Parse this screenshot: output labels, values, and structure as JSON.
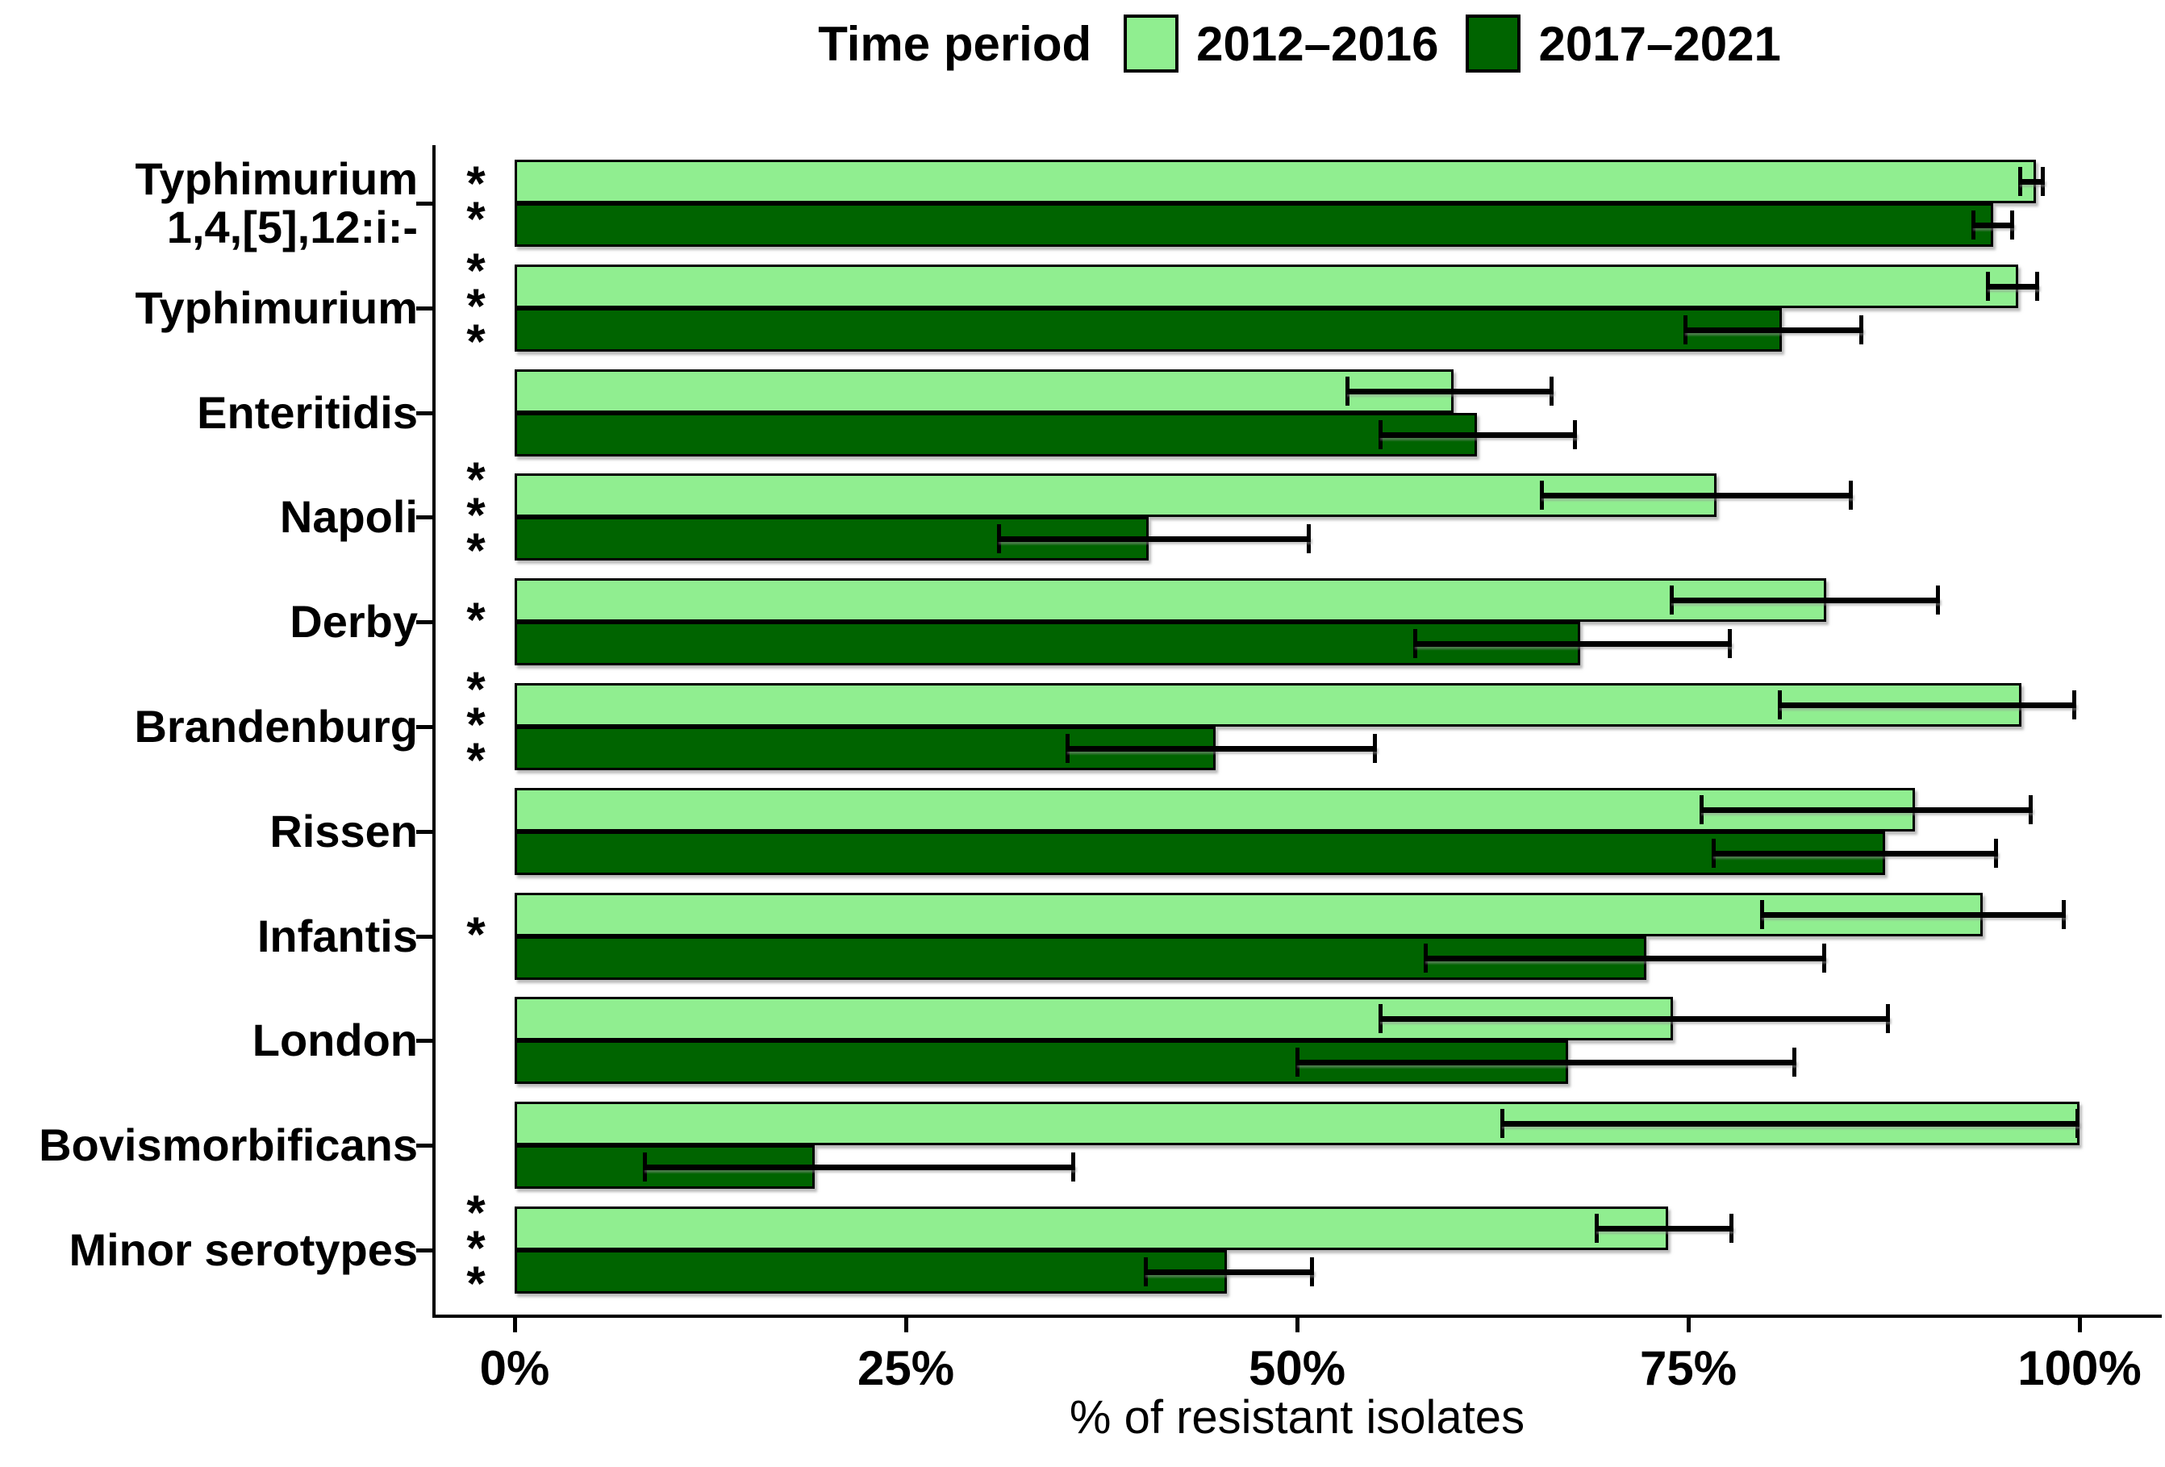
{
  "chart_data": {
    "type": "bar",
    "orientation": "horizontal",
    "legend_title": "Time period",
    "xlabel": "% of resistant isolates",
    "xlim": [
      0,
      100
    ],
    "x_ticks": [
      {
        "value": 0,
        "label": "0%"
      },
      {
        "value": 25,
        "label": "25%"
      },
      {
        "value": 50,
        "label": "50%"
      },
      {
        "value": 75,
        "label": "75%"
      },
      {
        "value": 100,
        "label": "100%"
      }
    ],
    "categories": [
      "Typhimurium\n1,4,[5],12:i:-",
      "Typhimurium",
      "Enteritidis",
      "Napoli",
      "Derby",
      "Brandenburg",
      "Rissen",
      "Infantis",
      "London",
      "Bovismorbificans",
      "Minor serotypes"
    ],
    "significance": [
      "**",
      "***",
      "",
      "***",
      "*",
      "***",
      "",
      "*",
      "",
      "",
      "***"
    ],
    "series": [
      {
        "name": "2012–2016",
        "color": "#90EE90",
        "values": [
          97.2,
          96.1,
          60.0,
          76.8,
          83.8,
          96.3,
          89.5,
          93.8,
          74.0,
          100.0,
          73.7
        ],
        "ci_low": [
          96.1,
          94.0,
          53.1,
          65.5,
          73.8,
          80.7,
          75.7,
          79.6,
          55.2,
          63.0,
          69.0
        ],
        "ci_high": [
          97.8,
          97.4,
          66.4,
          85.5,
          91.1,
          99.8,
          97.0,
          99.1,
          87.9,
          100.0,
          77.9
        ]
      },
      {
        "name": "2017–2021",
        "color": "#006400",
        "values": [
          94.5,
          81.0,
          61.5,
          40.5,
          68.1,
          44.8,
          87.6,
          72.3,
          67.3,
          19.2,
          45.5
        ],
        "ci_low": [
          93.1,
          74.7,
          55.2,
          30.8,
          57.4,
          35.2,
          76.5,
          58.1,
          49.9,
          8.2,
          40.2
        ],
        "ci_high": [
          95.8,
          86.2,
          67.9,
          50.9,
          77.8,
          55.1,
          94.8,
          83.8,
          81.9,
          35.8,
          51.1
        ]
      }
    ],
    "error_bars": true,
    "grid": false,
    "legend_position": "top"
  }
}
